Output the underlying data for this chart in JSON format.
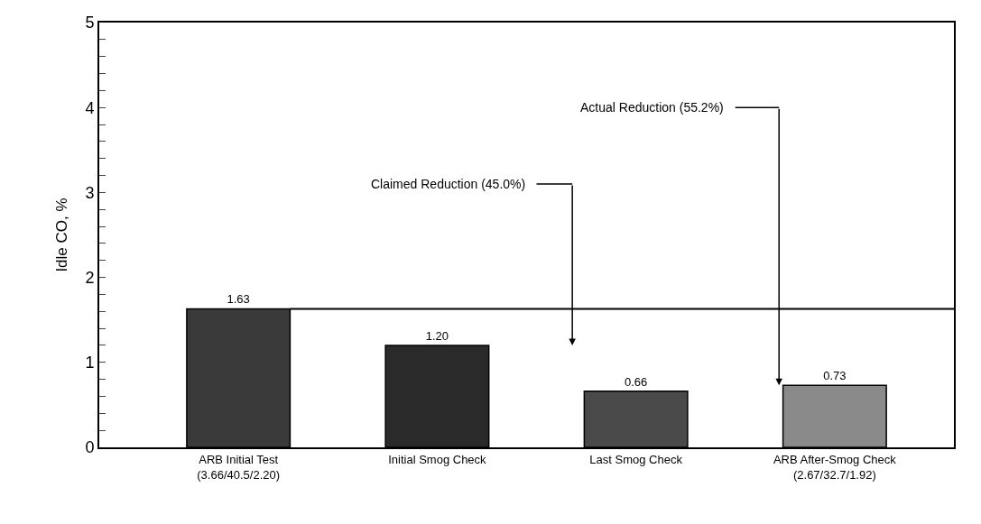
{
  "chart_data": {
    "type": "bar",
    "ylabel": "Idle CO, %",
    "categories": [
      "ARB Initial Test\n(3.66/40.5/2.20)",
      "Initial Smog Check",
      "Last Smog Check",
      "ARB After-Smog Check\n(2.67/32.7/1.92)"
    ],
    "values": [
      1.63,
      1.2,
      0.66,
      0.73
    ],
    "value_labels": [
      "1.63",
      "1.20",
      "0.66",
      "0.73"
    ],
    "colors": [
      "#3a3a3a",
      "#2a2a2a",
      "#4a4a4a",
      "#8a8a8a"
    ],
    "ylim": [
      0,
      5
    ],
    "yticks": [
      0,
      {
        "value": 0.2,
        "label": null
      },
      {
        "value": 0.4,
        "label": null
      },
      {
        "value": 0.6,
        "label": null
      },
      {
        "value": 0.8,
        "label": null
      },
      1,
      {
        "value": 1.2,
        "label": null
      },
      {
        "value": 1.4,
        "label": null
      },
      {
        "value": 1.6,
        "label": null
      },
      {
        "value": 1.8,
        "label": null
      },
      2,
      {
        "value": 2.2,
        "label": null
      },
      {
        "value": 2.4,
        "label": null
      },
      {
        "value": 2.6,
        "label": null
      },
      {
        "value": 2.8,
        "label": null
      },
      3,
      {
        "value": 3.2,
        "label": null
      },
      {
        "value": 3.4,
        "label": null
      },
      {
        "value": 3.6,
        "label": null
      },
      {
        "value": 3.8,
        "label": null
      },
      4,
      {
        "value": 4.2,
        "label": null
      },
      {
        "value": 4.4,
        "label": null
      },
      {
        "value": 4.6,
        "label": null
      },
      {
        "value": 4.8,
        "label": null
      },
      5
    ],
    "ref_lines": [
      {
        "axis": "y",
        "value": 1.63,
        "color": "#000000"
      }
    ],
    "annotations": [
      "Claimed Reduction (45.0%)",
      "Actual Reduction (55.2%)"
    ]
  }
}
